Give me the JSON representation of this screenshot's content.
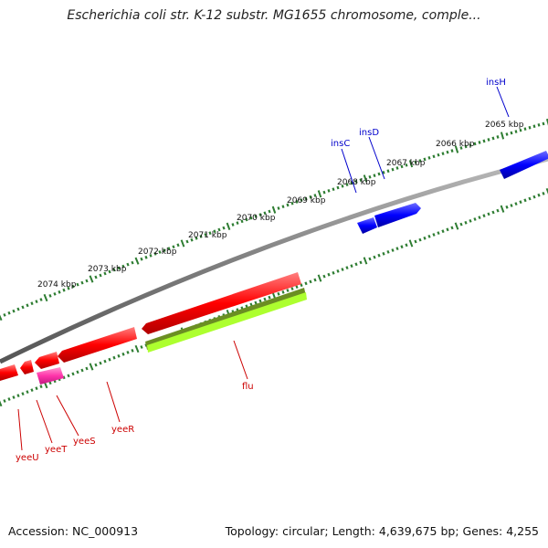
{
  "title": "Escherichia coli str. K-12 substr. MG1655 chromosome, comple...",
  "footer": {
    "accession": "Accession: NC_000913",
    "summary": "Topology: circular; Length: 4,639,675 bp; Genes: 4,255"
  },
  "colors": {
    "forward_gene": "#ff0000",
    "reverse_gene": "#0000ff",
    "cds_highlight": "#ff33aa",
    "flu_dark": "#6b8e23",
    "flu_light": "#adff2f",
    "backbone": "#808080",
    "tick": "#2e7d32",
    "forward_label": "#cc0000",
    "reverse_label": "#0000cc"
  },
  "ticks": [
    "2065 kbp",
    "2066 kbp",
    "2067 kbp",
    "2068 kbp",
    "2069 kbp",
    "2070 kbp",
    "2071 kbp",
    "2072 kbp",
    "2073 kbp",
    "2074 kbp"
  ],
  "genes_reverse": [
    {
      "name": "insH",
      "strand": "reverse"
    },
    {
      "name": "insD",
      "strand": "reverse"
    },
    {
      "name": "insC",
      "strand": "reverse"
    }
  ],
  "genes_forward": [
    {
      "name": "flu",
      "strand": "forward"
    },
    {
      "name": "yeeR",
      "strand": "forward"
    },
    {
      "name": "yeeS",
      "strand": "forward"
    },
    {
      "name": "yeeT",
      "strand": "forward"
    },
    {
      "name": "yeeU",
      "strand": "forward"
    }
  ]
}
